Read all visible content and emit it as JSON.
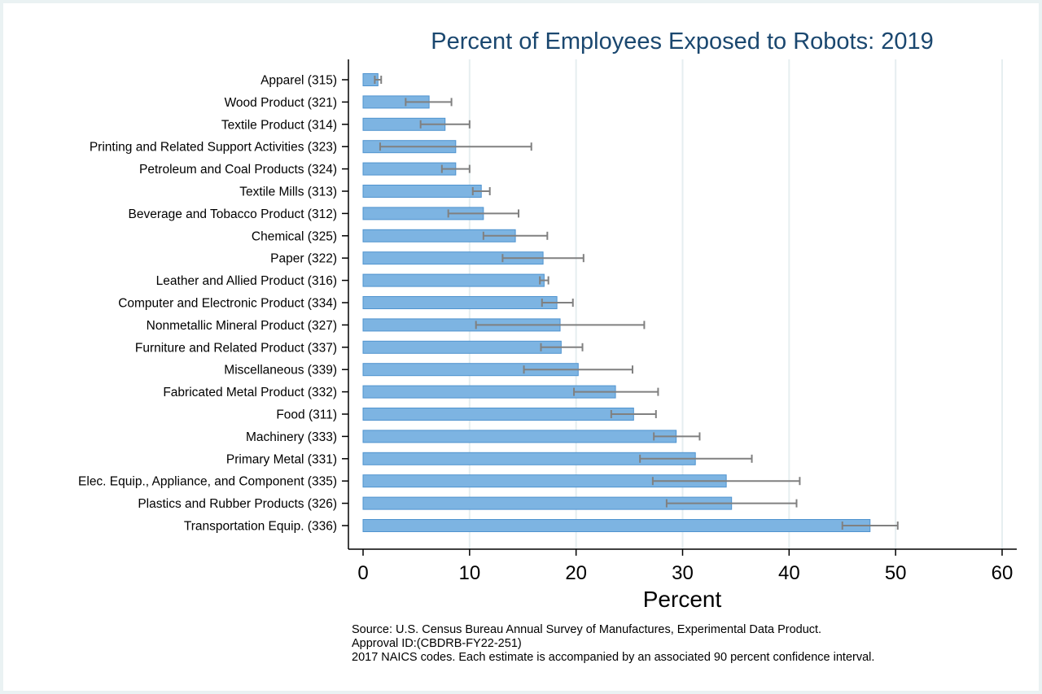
{
  "chart_data": {
    "type": "bar",
    "orientation": "horizontal",
    "title": "Percent of Employees Exposed to Robots: 2019",
    "xlabel": "Percent",
    "xlim": [
      0,
      60
    ],
    "xticks": [
      0,
      10,
      20,
      30,
      40,
      50,
      60
    ],
    "grid": true,
    "bar_color": "#7db4e2",
    "bar_edge_color": "#4f93cf",
    "error_bar_color": "#808080",
    "categories": [
      "Apparel (315)",
      "Wood Product (321)",
      "Textile Product (314)",
      "Printing and Related Support Activities (323)",
      "Petroleum and Coal Products (324)",
      "Textile Mills (313)",
      "Beverage and Tobacco Product (312)",
      "Chemical (325)",
      "Paper (322)",
      "Leather and Allied Product (316)",
      "Computer and Electronic Product (334)",
      "Nonmetallic Mineral Product (327)",
      "Furniture and Related Product (337)",
      "Miscellaneous (339)",
      "Fabricated Metal Product (332)",
      "Food (311)",
      "Machinery (333)",
      "Primary Metal (331)",
      "Elec. Equip., Appliance, and Component (335)",
      "Plastics and Rubber Products (326)",
      "Transportation Equip. (336)"
    ],
    "values": [
      1.4,
      6.2,
      7.7,
      8.7,
      8.7,
      11.1,
      11.3,
      14.3,
      16.9,
      17.0,
      18.2,
      18.5,
      18.6,
      20.2,
      23.7,
      25.4,
      29.4,
      31.2,
      34.1,
      34.6,
      47.6
    ],
    "ci_lower": [
      1.1,
      4.0,
      5.4,
      1.6,
      7.4,
      10.3,
      8.0,
      11.3,
      13.1,
      16.6,
      16.8,
      10.6,
      16.7,
      15.1,
      19.8,
      23.3,
      27.3,
      26.0,
      27.2,
      28.5,
      45.0
    ],
    "ci_upper": [
      1.7,
      8.3,
      10.0,
      15.8,
      10.0,
      11.9,
      14.6,
      17.3,
      20.7,
      17.4,
      19.7,
      26.4,
      20.6,
      25.3,
      27.7,
      27.5,
      31.6,
      36.5,
      41.0,
      40.7,
      50.2
    ]
  },
  "notes": [
    "Source: U.S. Census Bureau Annual Survey of Manufactures, Experimental Data Product.",
    "Approval ID:(CBDRB-FY22-251)",
    "2017 NAICS codes. Each estimate is accompanied by an associated 90 percent confidence interval."
  ]
}
